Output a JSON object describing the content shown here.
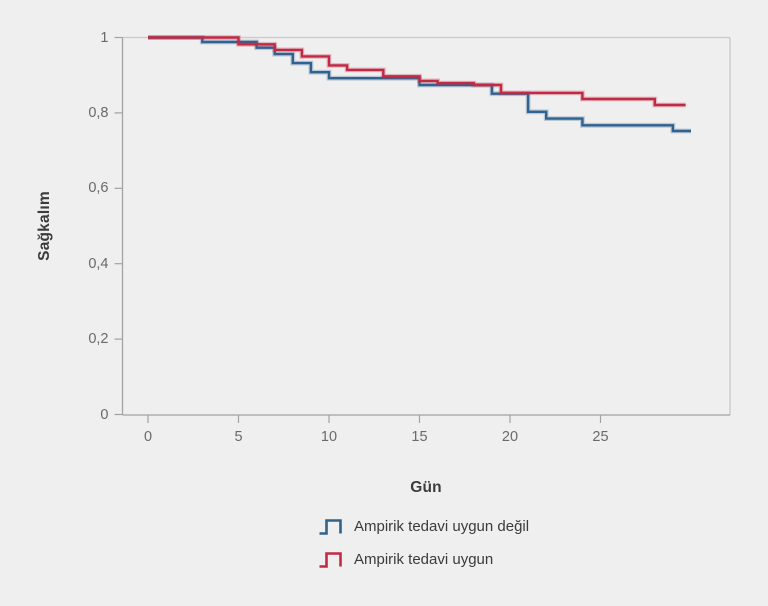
{
  "figure": {
    "background_color": "#efeff0",
    "plot_border_color_light": "#c9c9c9",
    "plot_border_color_dark": "#a2a2a2",
    "tick_label_color": "#6a6a6a",
    "axis_title_color": "#3b3b3b",
    "y_axis": {
      "title": "Sağkalım"
    },
    "x_axis": {
      "title": "Gün"
    },
    "legend": [
      {
        "label": "Ampirik tedavi uygun değil",
        "color": "#31618e"
      },
      {
        "label": "Ampirik tedavi uygun",
        "color": "#c02a45"
      }
    ]
  },
  "chart_data": {
    "type": "line",
    "subtype": "kaplan-meier-step",
    "title": "",
    "xlabel": "Gün",
    "ylabel": "Sağkalım",
    "xlim": [
      0,
      32.2
    ],
    "ylim": [
      0,
      1
    ],
    "grid": false,
    "legend_position": "bottom-center",
    "x_ticks": [
      0,
      5,
      10,
      15,
      20,
      25
    ],
    "x_tick_labels": [
      "0",
      "5",
      "10",
      "15",
      "20",
      "25"
    ],
    "y_ticks": [
      1,
      0.8,
      0.6,
      0.4,
      0.2,
      0
    ],
    "y_tick_labels": [
      "1",
      "0,8",
      "0,6",
      "0,4",
      "0,2",
      "0"
    ],
    "series": [
      {
        "name": "Ampirik tedavi uygun değil",
        "color": "#31618e",
        "end_x": 30,
        "steps": [
          [
            0,
            1.0
          ],
          [
            3,
            0.988
          ],
          [
            6,
            0.973
          ],
          [
            7,
            0.956
          ],
          [
            8,
            0.932
          ],
          [
            9,
            0.908
          ],
          [
            10,
            0.892
          ],
          [
            15,
            0.874
          ],
          [
            19,
            0.851
          ],
          [
            21,
            0.803
          ],
          [
            22,
            0.785
          ],
          [
            24,
            0.767
          ],
          [
            29,
            0.752
          ]
        ]
      },
      {
        "name": "Ampirik tedavi uygun",
        "color": "#c02a45",
        "end_x": 29.7,
        "steps": [
          [
            0,
            1.0
          ],
          [
            5,
            0.982
          ],
          [
            7,
            0.967
          ],
          [
            8.5,
            0.95
          ],
          [
            10,
            0.926
          ],
          [
            11,
            0.914
          ],
          [
            13,
            0.897
          ],
          [
            15,
            0.885
          ],
          [
            16,
            0.879
          ],
          [
            18,
            0.874
          ],
          [
            19.5,
            0.853
          ],
          [
            24,
            0.837
          ],
          [
            28,
            0.821
          ]
        ]
      }
    ]
  }
}
